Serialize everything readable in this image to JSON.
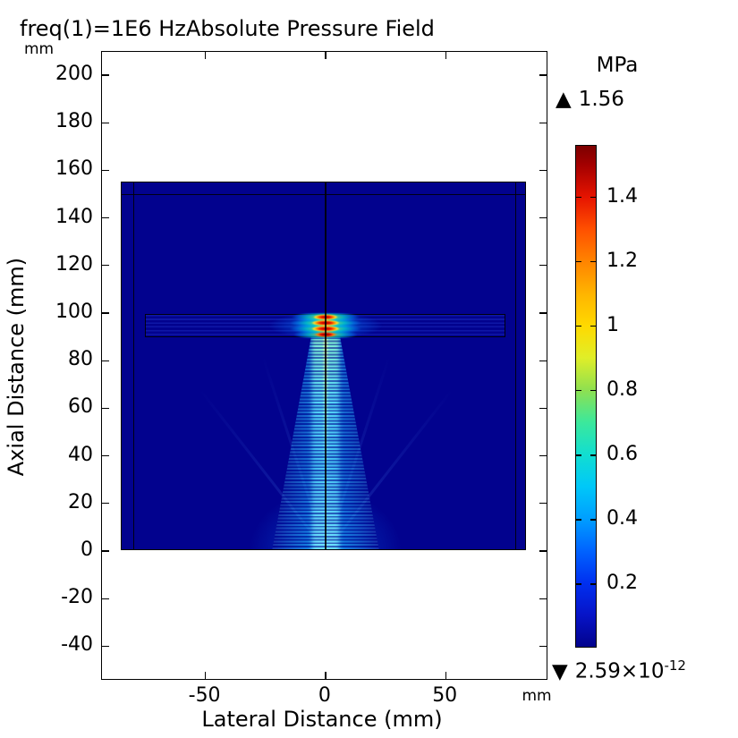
{
  "icons": {
    "max_marker": "▲",
    "min_marker": "▼"
  },
  "chart_data": {
    "type": "heatmap",
    "title": "freq(1)=1E6 HzAbsolute Pressure Field",
    "xlabel": "Lateral Distance (mm)",
    "ylabel": "Axial Distance (mm)",
    "x_unit": "mm",
    "y_unit": "mm",
    "xlim": [
      -93,
      93
    ],
    "ylim": [
      -54.5,
      209.5
    ],
    "x_ticks": [
      -50,
      0,
      50
    ],
    "y_ticks": [
      200,
      180,
      160,
      140,
      120,
      100,
      80,
      60,
      40,
      20,
      0,
      -20,
      -40
    ],
    "grid": false,
    "colorbar": {
      "unit": "MPa",
      "max": 1.56,
      "max_label": "1.56",
      "min": 2.59e-12,
      "min_label": "2.59×10^-12",
      "min_mantissa": "2.59×10",
      "min_exponent": "-12",
      "ticks": [
        1.4,
        1.2,
        1,
        0.8,
        0.6,
        0.4,
        0.2
      ],
      "tick_labels": [
        "1.4",
        "1.2",
        "1",
        "0.8",
        "0.6",
        "0.4",
        "0.2"
      ],
      "colormap": "rainbow-jet",
      "colormap_stops": [
        {
          "value": 0.0,
          "color": "#02028c"
        },
        {
          "value": 0.1,
          "color": "#0714c8"
        },
        {
          "value": 0.2,
          "color": "#0030f0"
        },
        {
          "value": 0.3,
          "color": "#0064ff"
        },
        {
          "value": 0.4,
          "color": "#009fff"
        },
        {
          "value": 0.5,
          "color": "#00c8f8"
        },
        {
          "value": 0.6,
          "color": "#12ded0"
        },
        {
          "value": 0.7,
          "color": "#3ce89b"
        },
        {
          "value": 0.8,
          "color": "#8fe050"
        },
        {
          "value": 0.9,
          "color": "#e0ee28"
        },
        {
          "value": 1.0,
          "color": "#ffd900"
        },
        {
          "value": 1.1,
          "color": "#ffb400"
        },
        {
          "value": 1.2,
          "color": "#ff8400"
        },
        {
          "value": 1.3,
          "color": "#ff5000"
        },
        {
          "value": 1.4,
          "color": "#e61400"
        },
        {
          "value": 1.5,
          "color": "#a40000"
        },
        {
          "value": 1.56,
          "color": "#7c0000"
        }
      ]
    },
    "geometry_mm": {
      "outer_domain": {
        "x": [
          -85,
          85
        ],
        "y": [
          0,
          155
        ]
      },
      "pml_boundary_lines": {
        "vertical_x": [
          -80,
          80
        ],
        "horizontal_y": 150
      },
      "slab": {
        "x": [
          -75,
          75
        ],
        "y": [
          90,
          100
        ]
      },
      "symmetry_axis_x": 0
    },
    "field_summary": "1 MHz focused ultrasound beam propagating upward from a source at y=0 along x=0 with interference fringes; focal lobes reaching 1.56 MPa inside the slab at y≈90–100 mm; background pressure near zero (dark blue)."
  }
}
